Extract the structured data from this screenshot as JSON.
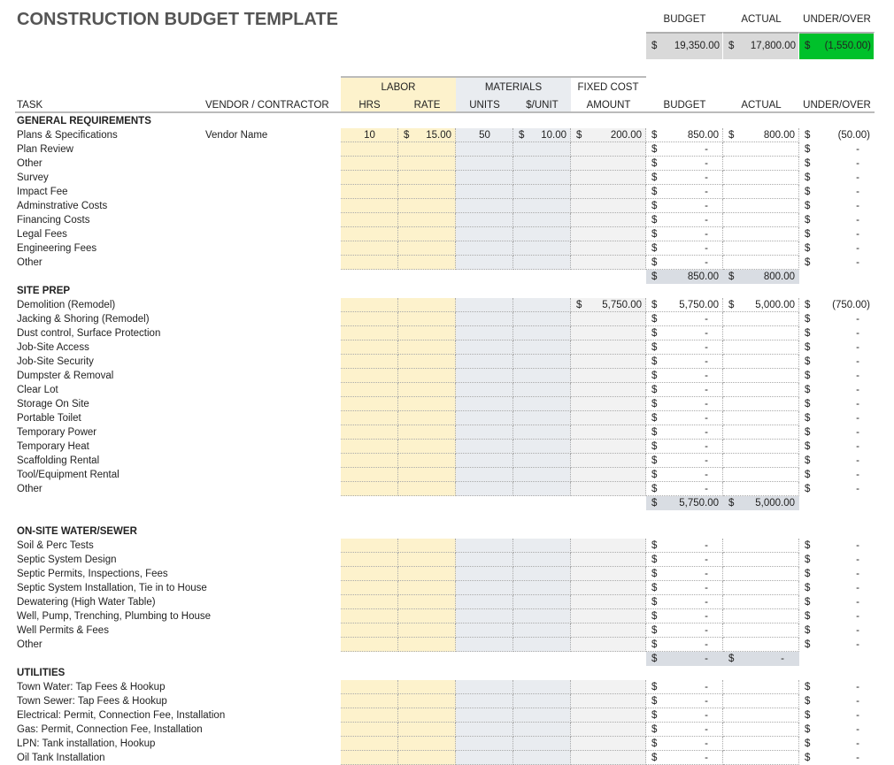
{
  "header": {
    "title": "CONSTRUCTION BUDGET TEMPLATE",
    "summary": {
      "labels": [
        "BUDGET",
        "ACTUAL",
        "UNDER/OVER"
      ],
      "values": [
        "19,350.00",
        "17,800.00",
        "(1,550.00)"
      ]
    }
  },
  "currency": "$",
  "group_headers": {
    "labor": "LABOR",
    "materials": "MATERIALS",
    "fixed_cost": "FIXED COST"
  },
  "columns": {
    "task": "TASK",
    "vendor": "VENDOR / CONTRACTOR",
    "hrs": "HRS",
    "rate": "RATE",
    "units": "UNITS",
    "unit_cost": "$/UNIT",
    "amount": "AMOUNT",
    "budget": "BUDGET",
    "actual": "ACTUAL",
    "under_over": "UNDER/OVER"
  },
  "sections": [
    {
      "title": "GENERAL REQUIREMENTS",
      "rows": [
        {
          "task": "Plans & Specifications",
          "vendor": "Vendor Name",
          "hrs": "10",
          "rate": "15.00",
          "units": "50",
          "unit_cost": "10.00",
          "amount": "200.00",
          "budget": "850.00",
          "actual": "800.00",
          "under_over": "(50.00)"
        },
        {
          "task": "Plan Review",
          "budget": "-",
          "under_over": "-"
        },
        {
          "task": "Other",
          "budget": "-",
          "under_over": "-"
        },
        {
          "task": "Survey",
          "budget": "-",
          "under_over": "-"
        },
        {
          "task": "Impact Fee",
          "budget": "-",
          "under_over": "-"
        },
        {
          "task": "Adminstrative Costs",
          "budget": "-",
          "under_over": "-"
        },
        {
          "task": "Financing Costs",
          "budget": "-",
          "under_over": "-"
        },
        {
          "task": "Legal Fees",
          "budget": "-",
          "under_over": "-"
        },
        {
          "task": "Engineering Fees",
          "budget": "-",
          "under_over": "-"
        },
        {
          "task": "Other",
          "budget": "-",
          "under_over": "-"
        }
      ],
      "subtotal": {
        "budget": "850.00",
        "actual": "800.00"
      }
    },
    {
      "title": "SITE PREP",
      "rows": [
        {
          "task": "Demolition (Remodel)",
          "amount": "5,750.00",
          "budget": "5,750.00",
          "actual": "5,000.00",
          "under_over": "(750.00)"
        },
        {
          "task": "Jacking & Shoring (Remodel)",
          "budget": "-",
          "under_over": "-"
        },
        {
          "task": "Dust control, Surface Protection",
          "budget": "-",
          "under_over": "-"
        },
        {
          "task": "Job-Site Access",
          "budget": "-",
          "under_over": "-"
        },
        {
          "task": "Job-Site Security",
          "budget": "-",
          "under_over": "-"
        },
        {
          "task": "Dumpster & Removal",
          "budget": "-",
          "under_over": "-"
        },
        {
          "task": "Clear Lot",
          "budget": "-",
          "under_over": "-"
        },
        {
          "task": "Storage On Site",
          "budget": "-",
          "under_over": "-"
        },
        {
          "task": "Portable Toilet",
          "budget": "-",
          "under_over": "-"
        },
        {
          "task": "Temporary Power",
          "budget": "-",
          "under_over": "-"
        },
        {
          "task": "Temporary Heat",
          "budget": "-",
          "under_over": "-"
        },
        {
          "task": "Scaffolding Rental",
          "budget": "-",
          "under_over": "-"
        },
        {
          "task": "Tool/Equipment Rental",
          "budget": "-",
          "under_over": "-"
        },
        {
          "task": "Other",
          "budget": "-",
          "under_over": "-"
        }
      ],
      "subtotal": {
        "budget": "5,750.00",
        "actual": "5,000.00"
      }
    },
    {
      "title": "ON-SITE WATER/SEWER",
      "rows": [
        {
          "task": "Soil & Perc Tests",
          "budget": "-",
          "under_over": "-"
        },
        {
          "task": "Septic System Design",
          "budget": "-",
          "under_over": "-"
        },
        {
          "task": "Septic Permits, Inspections, Fees",
          "budget": "-",
          "under_over": "-"
        },
        {
          "task": "Septic System Installation, Tie in to House",
          "budget": "-",
          "under_over": "-"
        },
        {
          "task": "Dewatering (High Water Table)",
          "budget": "-",
          "under_over": "-"
        },
        {
          "task": "Well, Pump, Trenching, Plumbing to House",
          "budget": "-",
          "under_over": "-"
        },
        {
          "task": "Well Permits & Fees",
          "budget": "-",
          "under_over": "-"
        },
        {
          "task": "Other",
          "budget": "-",
          "under_over": "-"
        }
      ],
      "subtotal": {
        "budget": "-",
        "actual": "-"
      }
    },
    {
      "title": "UTILITIES",
      "rows": [
        {
          "task": "Town Water: Tap Fees & Hookup",
          "budget": "-",
          "under_over": "-"
        },
        {
          "task": "Town Sewer: Tap Fees & Hookup",
          "budget": "-",
          "under_over": "-"
        },
        {
          "task": "Electrical: Permit, Connection Fee, Installation",
          "budget": "-",
          "under_over": "-"
        },
        {
          "task": "Gas: Permit, Connection Fee, Installation",
          "budget": "-",
          "under_over": "-"
        },
        {
          "task": "LPN: Tank installation, Hookup",
          "budget": "-",
          "under_over": "-"
        },
        {
          "task": "Oil Tank Installation",
          "budget": "-",
          "under_over": "-"
        }
      ]
    }
  ]
}
